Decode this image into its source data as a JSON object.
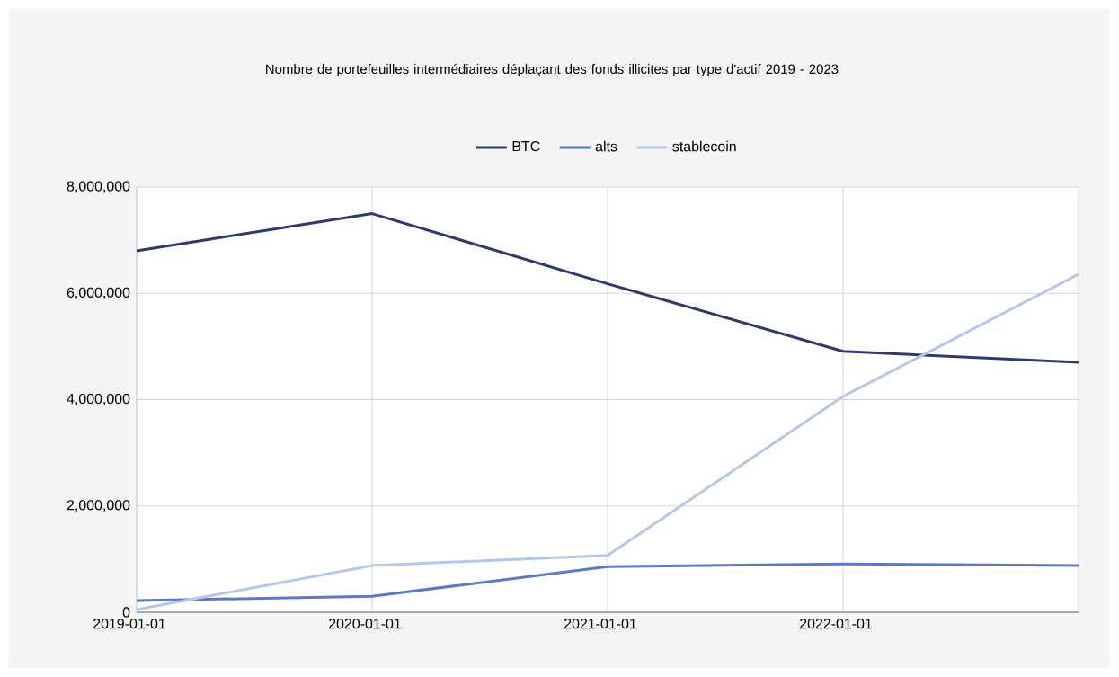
{
  "chart_data": {
    "type": "line",
    "title": "Nombre de portefeuilles intermédiaires déplaçant des fonds illicites par type d'actif 2019 - 2023",
    "categories": [
      "2019-01-01",
      "2020-01-01",
      "2021-01-01",
      "2022-01-01",
      null
    ],
    "series": [
      {
        "name": "BTC",
        "color": "#2e3a6e",
        "values": [
          6800000,
          7500000,
          6180000,
          4910000,
          4700000
        ]
      },
      {
        "name": "alts",
        "color": "#5f78c0",
        "values": [
          220000,
          300000,
          860000,
          910000,
          880000
        ]
      },
      {
        "name": "stablecoin",
        "color": "#b4c7ea",
        "values": [
          50000,
          880000,
          1070000,
          4060000,
          6360000
        ]
      }
    ],
    "ylim": [
      0,
      8000000
    ],
    "yticks": [
      {
        "value": 0,
        "label": "0"
      },
      {
        "value": 2000000,
        "label": "2,000,000"
      },
      {
        "value": 4000000,
        "label": "4,000,000"
      },
      {
        "value": 6000000,
        "label": "6,000,000"
      },
      {
        "value": 8000000,
        "label": "8,000,000"
      }
    ],
    "grid": true,
    "legend": "top",
    "marker": "none",
    "line_style": "solid"
  }
}
